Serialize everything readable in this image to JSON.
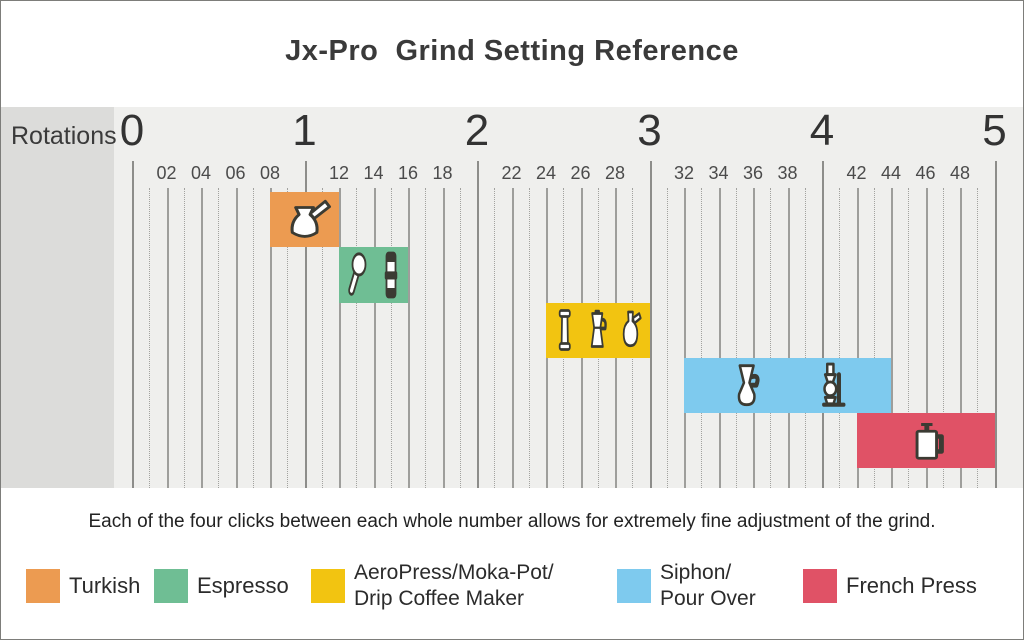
{
  "title": "Jx-Pro  Grind Setting Reference",
  "axis": {
    "label": "Rotations"
  },
  "note": "Each of the four clicks between each whole number allows for extremely fine adjustment of the grind.",
  "colors": {
    "chart_bg": "#efefed",
    "sidebar_bg": "#dcdcda",
    "turkish": "#EC9B51",
    "espresso": "#6FBE94",
    "aeropress_moka_drip": "#F2C411",
    "siphon_pour_over": "#7ECAEE",
    "french_press": "#E05266"
  },
  "chart_data": {
    "type": "bar",
    "orientation": "horizontal-range",
    "title": "Jx-Pro  Grind Setting Reference",
    "xlabel": "Rotations",
    "x_range": [
      0,
      5
    ],
    "clicks_per_rotation": 10,
    "x_major_ticks": [
      "0",
      "1",
      "2",
      "3",
      "4",
      "5"
    ],
    "x_minor_tick_labels": [
      "02",
      "04",
      "06",
      "08",
      "12",
      "14",
      "16",
      "18",
      "22",
      "24",
      "26",
      "28",
      "32",
      "34",
      "36",
      "38",
      "42",
      "44",
      "46",
      "48"
    ],
    "grid": "on",
    "bands": [
      {
        "name": "Turkish",
        "row": 0,
        "start_clicks": 8,
        "end_clicks": 12,
        "start_rotations": 0.8,
        "end_rotations": 1.2,
        "color": "#EC9B51",
        "icons": [
          "cezve-icon"
        ]
      },
      {
        "name": "Espresso",
        "row": 1,
        "start_clicks": 12,
        "end_clicks": 16,
        "start_rotations": 1.2,
        "end_rotations": 1.6,
        "color": "#6FBE94",
        "icons": [
          "portafilter-icon",
          "tamper-icon"
        ]
      },
      {
        "name": "AeroPress/Moka-Pot/Drip Coffee Maker",
        "row": 2,
        "start_clicks": 24,
        "end_clicks": 30,
        "start_rotations": 2.4,
        "end_rotations": 3.0,
        "color": "#F2C411",
        "icons": [
          "aeropress-icon",
          "moka-pot-icon",
          "coffee-server-icon"
        ]
      },
      {
        "name": "Siphon/Pour Over",
        "row": 3,
        "start_clicks": 32,
        "end_clicks": 44,
        "start_rotations": 3.2,
        "end_rotations": 4.4,
        "color": "#7ECAEE",
        "icons": [
          "pour-over-icon",
          "siphon-icon"
        ]
      },
      {
        "name": "French Press",
        "row": 4,
        "start_clicks": 42,
        "end_clicks": 50,
        "start_rotations": 4.2,
        "end_rotations": 5.0,
        "color": "#E05266",
        "icons": [
          "french-press-icon"
        ]
      }
    ]
  },
  "legend": [
    {
      "label": "Turkish",
      "color": "#EC9B51"
    },
    {
      "label": "Espresso",
      "color": "#6FBE94"
    },
    {
      "label": "AeroPress/Moka-Pot/\nDrip Coffee Maker",
      "color": "#F2C411"
    },
    {
      "label": "Siphon/\nPour Over",
      "color": "#7ECAEE"
    },
    {
      "label": "French Press",
      "color": "#E05266"
    }
  ]
}
